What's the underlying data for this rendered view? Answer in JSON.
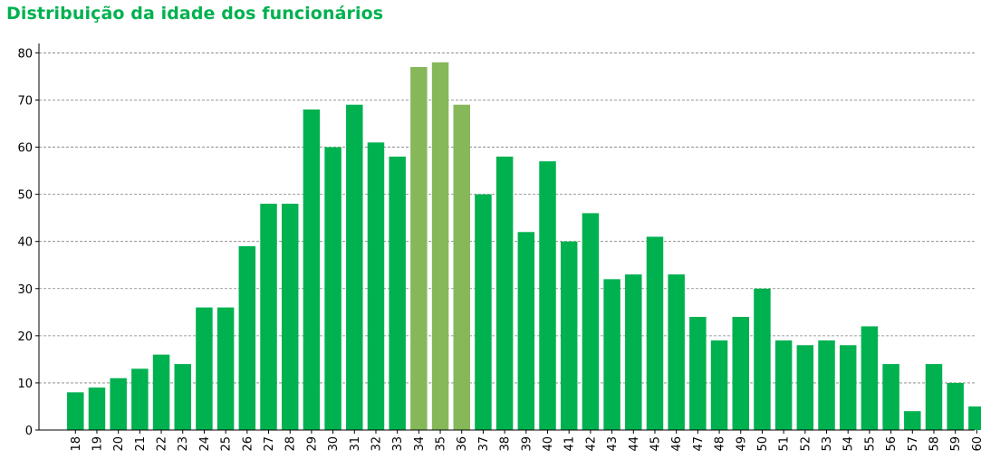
{
  "chart_data": {
    "type": "bar",
    "title": "Distribuição da idade dos funcionários",
    "xlabel": "",
    "ylabel": "",
    "categories": [
      "18",
      "19",
      "20",
      "21",
      "22",
      "23",
      "24",
      "25",
      "26",
      "27",
      "28",
      "29",
      "30",
      "31",
      "32",
      "33",
      "34",
      "35",
      "36",
      "37",
      "38",
      "39",
      "40",
      "41",
      "42",
      "43",
      "44",
      "45",
      "46",
      "47",
      "48",
      "49",
      "50",
      "51",
      "52",
      "53",
      "54",
      "55",
      "56",
      "57",
      "58",
      "59",
      "60"
    ],
    "values": [
      8,
      9,
      11,
      13,
      16,
      14,
      26,
      26,
      39,
      48,
      48,
      68,
      60,
      69,
      61,
      58,
      77,
      78,
      69,
      50,
      58,
      42,
      57,
      40,
      46,
      32,
      33,
      41,
      33,
      24,
      19,
      24,
      30,
      19,
      18,
      19,
      18,
      22,
      14,
      4,
      14,
      10,
      5
    ],
    "highlighted_categories": [
      "34",
      "35",
      "36"
    ],
    "ylim": [
      0,
      82
    ],
    "yticks": [
      0,
      10,
      20,
      30,
      40,
      50,
      60,
      70,
      80
    ],
    "grid": "horizontal dashed",
    "legend": "none",
    "colors": {
      "bar": "#00b14f",
      "highlight": "#86b85a",
      "title": "#00b14f",
      "grid": "#808080"
    }
  }
}
